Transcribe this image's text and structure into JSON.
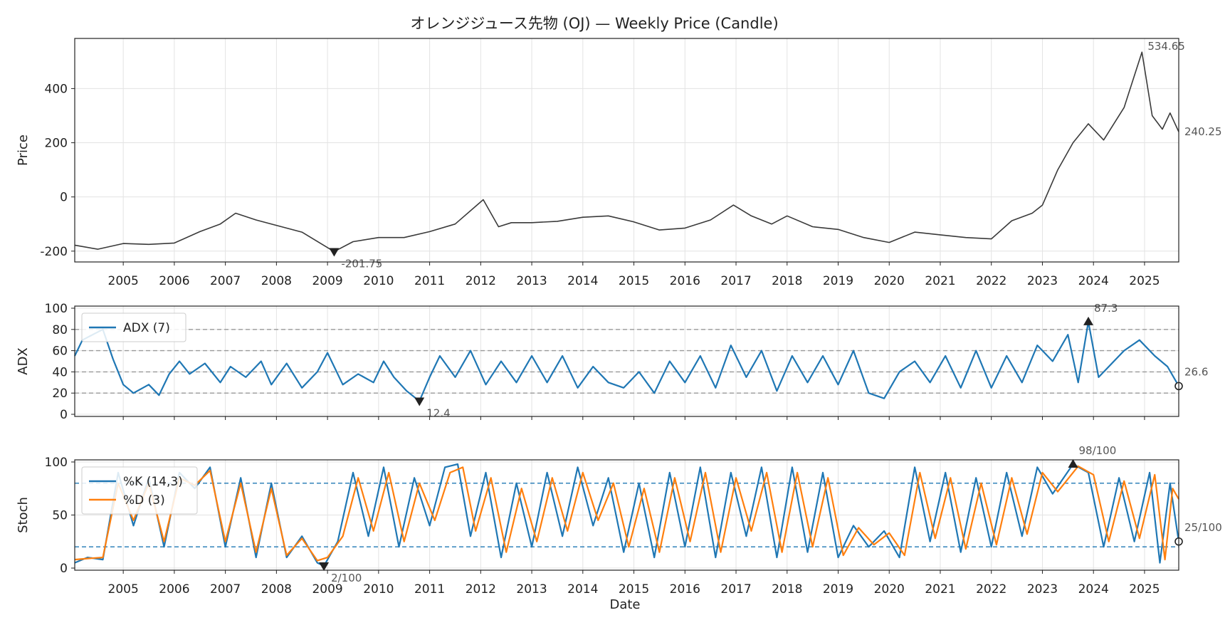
{
  "chart_data": {
    "title": "オレンジジュース先物 (OJ) — Weekly Price (Candle)",
    "xlabel": "Date",
    "x_ticks": [
      "2005",
      "2006",
      "2007",
      "2008",
      "2009",
      "2010",
      "2011",
      "2012",
      "2013",
      "2014",
      "2015",
      "2016",
      "2017",
      "2018",
      "2019",
      "2020",
      "2021",
      "2022",
      "2023",
      "2024",
      "2025"
    ],
    "x_range": [
      2004.05,
      2025.67
    ],
    "colors": {
      "price": "#3a3a3a",
      "adx": "#1f77b4",
      "k": "#1f77b4",
      "d": "#ff7f0e",
      "ref": "#999999",
      "stoch_ref": "#1f77b4",
      "annot": "#555555"
    },
    "panels": [
      {
        "type": "line",
        "ylabel": "Price",
        "ylim": [
          -240,
          585
        ],
        "yticks": [
          "-200",
          "0",
          "200",
          "400"
        ],
        "series": [
          {
            "x": [
              2004.05,
              2004.5,
              2005.0,
              2005.5,
              2006.0,
              2006.5,
              2006.9,
              2007.2,
              2007.6,
              2008.0,
              2008.5,
              2009.13,
              2009.5,
              2010.0,
              2010.5,
              2011.0,
              2011.5,
              2012.05,
              2012.35,
              2012.6,
              2013.0,
              2013.5,
              2014.0,
              2014.5,
              2015.0,
              2015.5,
              2016.0,
              2016.5,
              2016.95,
              2017.3,
              2017.7,
              2018.0,
              2018.5,
              2019.0,
              2019.5,
              2020.0,
              2020.5,
              2021.0,
              2021.5,
              2022.0,
              2022.4,
              2022.8,
              2023.0,
              2023.3,
              2023.6,
              2023.9,
              2024.2,
              2024.6,
              2024.95,
              2025.15,
              2025.35,
              2025.5,
              2025.67
            ],
            "y": [
              -178,
              -193,
              -172,
              -175,
              -170,
              -128,
              -100,
              -60,
              -85,
              -105,
              -130,
              -201.75,
              -165,
              -150,
              -150,
              -128,
              -100,
              -10,
              -110,
              -95,
              -95,
              -90,
              -75,
              -70,
              -92,
              -122,
              -115,
              -85,
              -30,
              -70,
              -100,
              -70,
              -110,
              -120,
              -150,
              -168,
              -130,
              -140,
              -150,
              -155,
              -88,
              -60,
              -30,
              100,
              200,
              270,
              210,
              330,
              534.65,
              300,
              250,
              310,
              240.25
            ]
          }
        ],
        "annotations": [
          {
            "label": "534.65",
            "x": 2024.95,
            "y": 534.65,
            "marker": "none"
          },
          {
            "label": "-201.75",
            "x": 2009.13,
            "y": -201.75,
            "marker": "down"
          },
          {
            "label": "240.25",
            "x": 2025.67,
            "y": 240.25,
            "marker": "none"
          }
        ]
      },
      {
        "type": "line",
        "ylabel": "ADX",
        "ylim": [
          -2,
          102
        ],
        "yticks": [
          "0",
          "20",
          "40",
          "60",
          "80",
          "100"
        ],
        "ref_lines": [
          20,
          40,
          60,
          80
        ],
        "legend": [
          "ADX (7)"
        ],
        "series": [
          {
            "name": "ADX (7)",
            "x": [
              2004.05,
              2004.2,
              2004.4,
              2004.6,
              2004.8,
              2005.0,
              2005.2,
              2005.5,
              2005.7,
              2005.9,
              2006.1,
              2006.3,
              2006.6,
              2006.9,
              2007.1,
              2007.4,
              2007.7,
              2007.9,
              2008.2,
              2008.5,
              2008.8,
              2009.0,
              2009.3,
              2009.6,
              2009.9,
              2010.1,
              2010.3,
              2010.55,
              2010.8,
              2011.0,
              2011.2,
              2011.5,
              2011.8,
              2012.1,
              2012.4,
              2012.7,
              2013.0,
              2013.3,
              2013.6,
              2013.9,
              2014.2,
              2014.5,
              2014.8,
              2015.1,
              2015.4,
              2015.7,
              2016.0,
              2016.3,
              2016.6,
              2016.9,
              2017.2,
              2017.5,
              2017.8,
              2018.1,
              2018.4,
              2018.7,
              2019.0,
              2019.3,
              2019.6,
              2019.9,
              2020.2,
              2020.5,
              2020.8,
              2021.1,
              2021.4,
              2021.7,
              2022.0,
              2022.3,
              2022.6,
              2022.9,
              2023.2,
              2023.5,
              2023.7,
              2023.9,
              2024.1,
              2024.3,
              2024.6,
              2024.9,
              2025.2,
              2025.45,
              2025.67
            ],
            "y": [
              55,
              70,
              75,
              80,
              52,
              28,
              20,
              28,
              18,
              38,
              50,
              38,
              48,
              30,
              45,
              35,
              50,
              28,
              48,
              25,
              40,
              58,
              28,
              38,
              30,
              50,
              35,
              22,
              12.4,
              35,
              55,
              35,
              60,
              28,
              50,
              30,
              55,
              30,
              55,
              25,
              45,
              30,
              25,
              40,
              20,
              50,
              30,
              55,
              25,
              65,
              35,
              60,
              22,
              55,
              30,
              55,
              28,
              60,
              20,
              15,
              40,
              50,
              30,
              55,
              25,
              60,
              25,
              55,
              30,
              65,
              50,
              75,
              30,
              87.3,
              35,
              45,
              60,
              70,
              55,
              45,
              26.6
            ]
          }
        ],
        "annotations": [
          {
            "label": "87.3",
            "x": 2023.9,
            "y": 87.3,
            "marker": "up"
          },
          {
            "label": "12.4",
            "x": 2010.8,
            "y": 12.4,
            "marker": "down"
          },
          {
            "label": "26.6",
            "x": 2025.67,
            "y": 26.6,
            "marker": "circle"
          }
        ]
      },
      {
        "type": "line",
        "ylabel": "Stoch",
        "ylim": [
          -2,
          102
        ],
        "yticks": [
          "0",
          "50",
          "100"
        ],
        "ref_lines": [
          20,
          80
        ],
        "legend": [
          "%K (14,3)",
          "%D (3)"
        ],
        "series": [
          {
            "name": "%K (14,3)",
            "x": [
              2004.05,
              2004.3,
              2004.6,
              2004.9,
              2005.2,
              2005.5,
              2005.8,
              2006.1,
              2006.4,
              2006.7,
              2007.0,
              2007.3,
              2007.6,
              2007.9,
              2008.2,
              2008.5,
              2008.8,
              2008.93,
              2009.2,
              2009.5,
              2009.8,
              2010.1,
              2010.4,
              2010.7,
              2011.0,
              2011.3,
              2011.55,
              2011.8,
              2012.1,
              2012.4,
              2012.7,
              2013.0,
              2013.3,
              2013.6,
              2013.9,
              2014.2,
              2014.5,
              2014.8,
              2015.1,
              2015.4,
              2015.7,
              2016.0,
              2016.3,
              2016.6,
              2016.9,
              2017.2,
              2017.5,
              2017.8,
              2018.1,
              2018.4,
              2018.7,
              2019.0,
              2019.3,
              2019.6,
              2019.9,
              2020.2,
              2020.5,
              2020.8,
              2021.1,
              2021.4,
              2021.7,
              2022.0,
              2022.3,
              2022.6,
              2022.9,
              2023.2,
              2023.6,
              2023.9,
              2024.2,
              2024.5,
              2024.8,
              2025.1,
              2025.3,
              2025.5,
              2025.67
            ],
            "y": [
              5,
              10,
              8,
              90,
              40,
              85,
              20,
              90,
              75,
              95,
              20,
              85,
              10,
              80,
              10,
              30,
              5,
              2,
              25,
              90,
              30,
              95,
              20,
              85,
              40,
              95,
              98,
              30,
              90,
              10,
              80,
              20,
              90,
              30,
              95,
              40,
              85,
              15,
              80,
              10,
              90,
              20,
              95,
              10,
              90,
              30,
              95,
              10,
              95,
              15,
              90,
              10,
              40,
              20,
              35,
              10,
              95,
              25,
              90,
              15,
              85,
              20,
              90,
              30,
              95,
              70,
              98,
              90,
              20,
              85,
              25,
              90,
              5,
              80,
              25
            ]
          },
          {
            "name": "%D (3)",
            "x": [
              2004.05,
              2004.3,
              2004.6,
              2004.9,
              2005.2,
              2005.5,
              2005.8,
              2006.1,
              2006.4,
              2006.7,
              2007.0,
              2007.3,
              2007.6,
              2007.9,
              2008.2,
              2008.5,
              2008.8,
              2009.0,
              2009.3,
              2009.6,
              2009.9,
              2010.2,
              2010.5,
              2010.8,
              2011.1,
              2011.4,
              2011.65,
              2011.9,
              2012.2,
              2012.5,
              2012.8,
              2013.1,
              2013.4,
              2013.7,
              2014.0,
              2014.3,
              2014.6,
              2014.9,
              2015.2,
              2015.5,
              2015.8,
              2016.1,
              2016.4,
              2016.7,
              2017.0,
              2017.3,
              2017.6,
              2017.9,
              2018.2,
              2018.5,
              2018.8,
              2019.1,
              2019.4,
              2019.7,
              2020.0,
              2020.3,
              2020.6,
              2020.9,
              2021.2,
              2021.5,
              2021.8,
              2022.1,
              2022.4,
              2022.7,
              2023.0,
              2023.3,
              2023.7,
              2024.0,
              2024.3,
              2024.6,
              2024.9,
              2025.2,
              2025.4,
              2025.55,
              2025.67
            ],
            "y": [
              8,
              9,
              10,
              80,
              45,
              80,
              25,
              85,
              78,
              92,
              25,
              80,
              15,
              75,
              12,
              28,
              7,
              10,
              30,
              85,
              35,
              90,
              25,
              80,
              45,
              90,
              95,
              35,
              85,
              15,
              75,
              25,
              85,
              35,
              90,
              45,
              80,
              20,
              75,
              15,
              85,
              25,
              90,
              15,
              85,
              35,
              90,
              15,
              90,
              20,
              85,
              12,
              38,
              22,
              33,
              12,
              90,
              28,
              85,
              18,
              80,
              22,
              85,
              32,
              90,
              72,
              96,
              88,
              25,
              82,
              28,
              88,
              8,
              75,
              65
            ]
          }
        ],
        "annotations": [
          {
            "label": "98/100",
            "x": 2023.6,
            "y": 98,
            "marker": "up"
          },
          {
            "label": "2/100",
            "x": 2008.93,
            "y": 2,
            "marker": "down"
          },
          {
            "label": "25/100",
            "x": 2025.67,
            "y": 25,
            "marker": "circle"
          }
        ]
      }
    ]
  }
}
